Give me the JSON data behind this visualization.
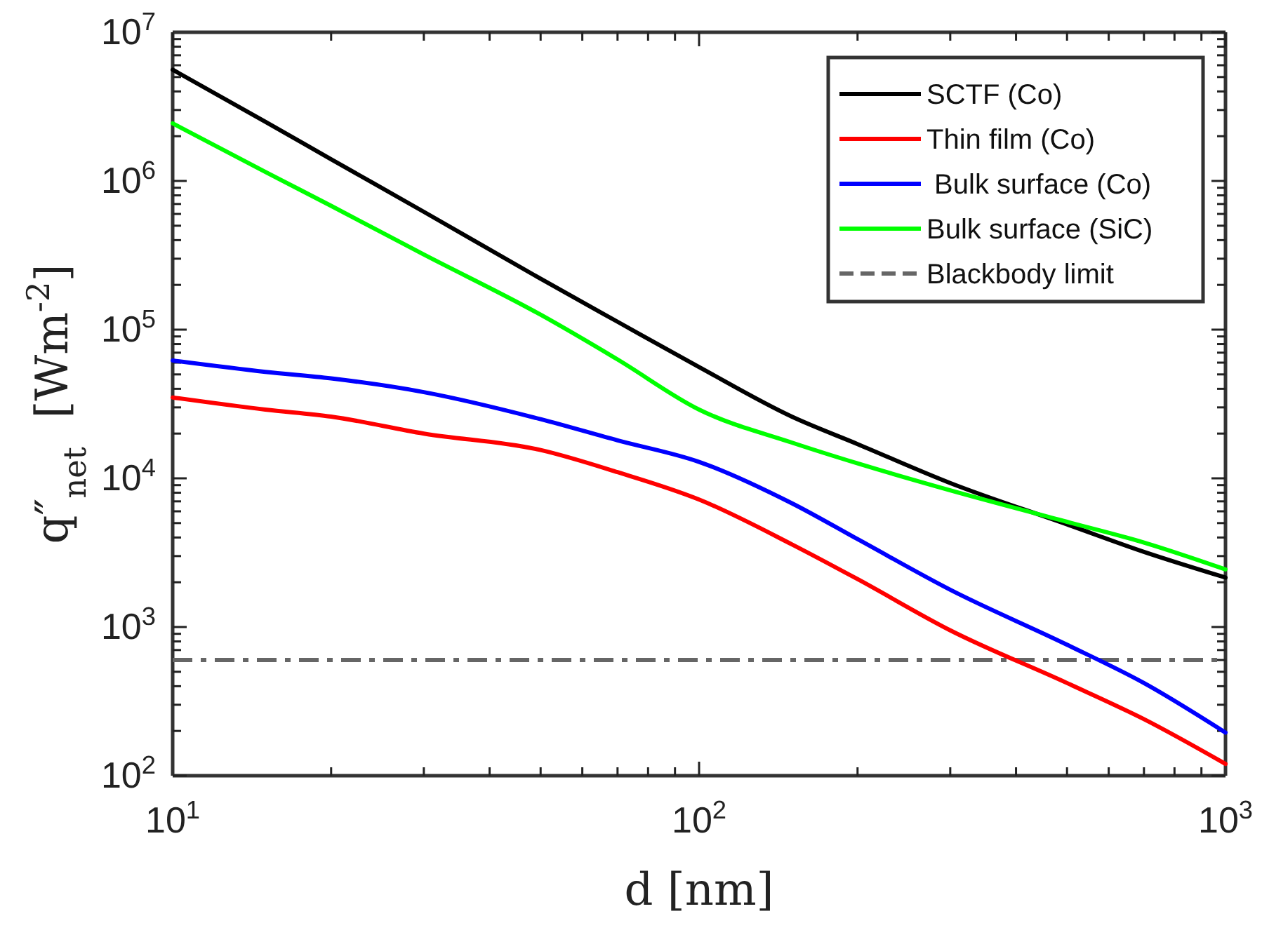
{
  "chart_data": {
    "type": "line",
    "xlabel": "d [nm]",
    "ylabel": "q″$_{net}$  [Wm$^{-2}$]",
    "log": "xy",
    "legend": "top right",
    "line_style": "solid",
    "marker": "none",
    "grid": false,
    "xlim": [
      10,
      1000
    ],
    "ylim": [
      100,
      10000000
    ],
    "xticks": [
      {
        "value": 10,
        "label": "10$^{1}$"
      },
      {
        "value": 20,
        "label": null
      },
      {
        "value": 30,
        "label": null
      },
      {
        "value": 40,
        "label": null
      },
      {
        "value": 50,
        "label": null
      },
      {
        "value": 60,
        "label": null
      },
      {
        "value": 70,
        "label": null
      },
      {
        "value": 80,
        "label": null
      },
      {
        "value": 90,
        "label": null
      },
      {
        "value": 100,
        "label": "10$^{2}$"
      },
      {
        "value": 200,
        "label": null
      },
      {
        "value": 300,
        "label": null
      },
      {
        "value": 400,
        "label": null
      },
      {
        "value": 500,
        "label": null
      },
      {
        "value": 600,
        "label": null
      },
      {
        "value": 700,
        "label": null
      },
      {
        "value": 800,
        "label": null
      },
      {
        "value": 900,
        "label": null
      },
      {
        "value": 1000,
        "label": "10$^{3}$"
      }
    ],
    "yticks": [
      {
        "value": 100,
        "label": "10$^{2}$"
      },
      {
        "value": 200,
        "label": null
      },
      {
        "value": 300,
        "label": null
      },
      {
        "value": 400,
        "label": null
      },
      {
        "value": 500,
        "label": null
      },
      {
        "value": 600,
        "label": null
      },
      {
        "value": 700,
        "label": null
      },
      {
        "value": 800,
        "label": null
      },
      {
        "value": 900,
        "label": null
      },
      {
        "value": 1000,
        "label": "10$^{3}$"
      },
      {
        "value": 2000,
        "label": null
      },
      {
        "value": 3000,
        "label": null
      },
      {
        "value": 4000,
        "label": null
      },
      {
        "value": 5000,
        "label": null
      },
      {
        "value": 6000,
        "label": null
      },
      {
        "value": 7000,
        "label": null
      },
      {
        "value": 8000,
        "label": null
      },
      {
        "value": 9000,
        "label": null
      },
      {
        "value": 10000,
        "label": "10$^{4}$"
      },
      {
        "value": 20000,
        "label": null
      },
      {
        "value": 30000,
        "label": null
      },
      {
        "value": 40000,
        "label": null
      },
      {
        "value": 50000,
        "label": null
      },
      {
        "value": 60000,
        "label": null
      },
      {
        "value": 70000,
        "label": null
      },
      {
        "value": 80000,
        "label": null
      },
      {
        "value": 90000,
        "label": null
      },
      {
        "value": 100000,
        "label": "10$^{5}$"
      },
      {
        "value": 200000,
        "label": null
      },
      {
        "value": 300000,
        "label": null
      },
      {
        "value": 400000,
        "label": null
      },
      {
        "value": 500000,
        "label": null
      },
      {
        "value": 600000,
        "label": null
      },
      {
        "value": 700000,
        "label": null
      },
      {
        "value": 800000,
        "label": null
      },
      {
        "value": 900000,
        "label": null
      },
      {
        "value": 1000000,
        "label": "10$^{6}$"
      },
      {
        "value": 2000000,
        "label": null
      },
      {
        "value": 3000000,
        "label": null
      },
      {
        "value": 4000000,
        "label": null
      },
      {
        "value": 5000000,
        "label": null
      },
      {
        "value": 6000000,
        "label": null
      },
      {
        "value": 7000000,
        "label": null
      },
      {
        "value": 8000000,
        "label": null
      },
      {
        "value": 9000000,
        "label": null
      },
      {
        "value": 10000000,
        "label": "10$^{7}$"
      }
    ],
    "x": [
      10,
      15,
      20,
      30,
      50,
      70,
      100,
      150,
      200,
      300,
      500,
      700,
      1000
    ],
    "series": [
      {
        "name": "SCTF (Co)",
        "color": "#000000",
        "values": [
          5600000,
          2500000,
          1400000,
          620000,
          220000,
          113000,
          56000,
          26000,
          17000,
          9300,
          4900,
          3200,
          2150
        ]
      },
      {
        "name": "Thin film (Co)",
        "color": "#ff0000",
        "values": [
          35000,
          29000,
          26000,
          20000,
          15500,
          11000,
          7200,
          3600,
          2100,
          950,
          420,
          240,
          120
        ]
      },
      {
        "name": " Bulk surface (Co)",
        "color": "#0000ff",
        "values": [
          62000,
          52000,
          47000,
          38000,
          25000,
          18000,
          12900,
          6800,
          3900,
          1780,
          760,
          420,
          195
        ]
      },
      {
        "name": "Bulk surface (SiC)",
        "color": "#00ff00",
        "values": [
          2440000,
          1150000,
          680000,
          320000,
          126000,
          63000,
          29000,
          17400,
          12600,
          8300,
          5100,
          3700,
          2440
        ]
      }
    ],
    "ref_lines": [
      {
        "axis": "y",
        "value": 600,
        "label": "Blackbody limit",
        "color": "#666666",
        "line_style": "dashdot"
      }
    ]
  }
}
